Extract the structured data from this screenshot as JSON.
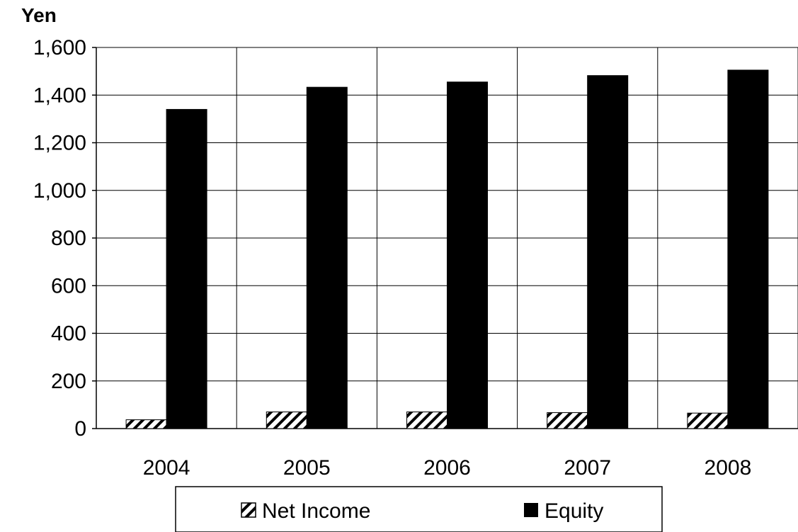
{
  "chart_data": {
    "type": "bar",
    "ylabel": "Yen",
    "xlabel": "",
    "categories": [
      "2004",
      "2005",
      "2006",
      "2007",
      "2008"
    ],
    "series": [
      {
        "name": "Net Income",
        "values": [
          37,
          70,
          70,
          67,
          65
        ],
        "fill": "hatched"
      },
      {
        "name": "Equity",
        "values": [
          1340,
          1433,
          1455,
          1482,
          1505
        ],
        "fill": "#000000"
      }
    ],
    "ylim": [
      0,
      1600
    ],
    "yticks": [
      0,
      200,
      400,
      600,
      800,
      1000,
      1200,
      1400,
      1600
    ],
    "ytick_labels": [
      "0",
      "200",
      "400",
      "600",
      "800",
      "1,000",
      "1,200",
      "1,400",
      "1,600"
    ],
    "grid": true,
    "legend_position": "bottom",
    "colors": {
      "bars": "#000000",
      "background": "#ffffff",
      "grid": "#000000"
    }
  }
}
